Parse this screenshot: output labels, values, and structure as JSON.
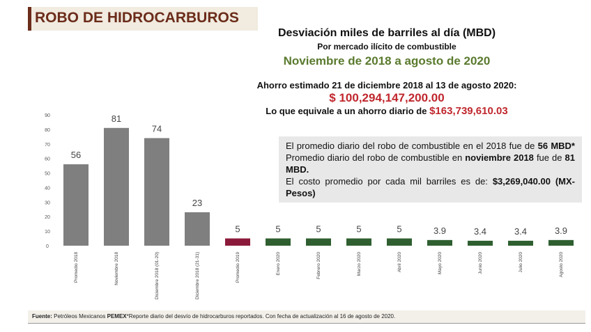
{
  "header": {
    "title": "ROBO DE HIDROCARBUROS"
  },
  "summary": {
    "heading": "Desviación miles de barriles al día (MBD)",
    "subheading": "Por mercado ilícito de combustible",
    "period": "Noviembre de 2018 a agosto de 2020",
    "savings_label": "Ahorro estimado 21 de diciembre 2018 al 13 de agosto 2020:",
    "savings_amount": "$ 100,294,147,200.00",
    "daily_label": "Lo que equivale a un ahorro diario de",
    "daily_amount": "$163,739,610.03"
  },
  "info_box": {
    "paragraph_1": [
      "El promedio diario del robo de combustible en el 2018 fue de",
      "56 MBD*",
      "Promedio diario del robo de combustible en",
      "noviembre 2018",
      "fue de",
      "81 MBD."
    ],
    "paragraph_2": [
      "El costo promedio por cada mil barriles es de:",
      "$3,269,040.00 (MX-Pesos)"
    ]
  },
  "footer": [
    "Fuente:",
    "Petróleos Mexicanos",
    "PEMEX",
    "*Reporte diario del desvío de hidrocarburos reportados. Con fecha de actualización  al 16 de agosto de 2020."
  ],
  "chart_data": {
    "type": "bar",
    "categories": [
      "Promedio 2018",
      "Noviembre 2018",
      "Diciembre 2018 (01-20)",
      "Diciembre 2018 (21-31)",
      "Promedio 2019",
      "Enero 2020",
      "Febrero 2020",
      "Marzo 2020",
      "Abril 2020",
      "Mayo 2020",
      "Junio 2020",
      "Julio 2020",
      "Agosto 2020"
    ],
    "values": [
      56,
      81,
      74,
      23,
      5,
      5,
      5,
      5,
      5,
      3.9,
      3.4,
      3.4,
      3.9
    ],
    "colors": [
      "#7f7f7f",
      "#7f7f7f",
      "#7f7f7f",
      "#7f7f7f",
      "#8b1a3a",
      "#2f5f30",
      "#2f5f30",
      "#2f5f30",
      "#2f5f30",
      "#2f5f30",
      "#2f5f30",
      "#2f5f30",
      "#2f5f30"
    ],
    "ylim": [
      0,
      90
    ],
    "yticks": [
      0,
      10,
      20,
      30,
      40,
      50,
      60,
      70,
      80,
      90
    ],
    "grid": false
  }
}
